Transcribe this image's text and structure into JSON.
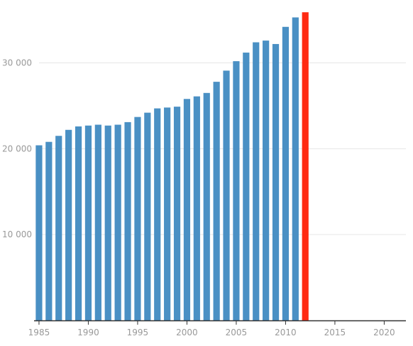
{
  "chart_data": {
    "type": "bar",
    "title": "",
    "xlabel": "",
    "ylabel": "",
    "x": [
      1985,
      1986,
      1987,
      1988,
      1989,
      1990,
      1991,
      1992,
      1993,
      1994,
      1995,
      1996,
      1997,
      1998,
      1999,
      2000,
      2001,
      2002,
      2003,
      2004,
      2005,
      2006,
      2007,
      2008,
      2009,
      2010,
      2011,
      2012
    ],
    "values": [
      20400,
      20800,
      21500,
      22200,
      22600,
      22700,
      22800,
      22700,
      22800,
      23100,
      23700,
      24200,
      24700,
      24800,
      24900,
      25800,
      26100,
      26500,
      27800,
      29100,
      30200,
      31200,
      32400,
      32600,
      32200,
      34200,
      35300,
      35900
    ],
    "highlight_index": 27,
    "colors": {
      "bar": "#4a90c4",
      "highlight": "#ff2a12"
    },
    "xlim": [
      1984.5,
      2022.2
    ],
    "ylim": [
      0,
      36500
    ],
    "y_ticks": [
      10000,
      20000,
      30000
    ],
    "y_tick_labels": [
      "10 000",
      "20 000",
      "30 000"
    ],
    "x_ticks": [
      1985,
      1990,
      1995,
      2000,
      2005,
      2010,
      2015,
      2020
    ],
    "x_tick_labels": [
      "1985",
      "1990",
      "1995",
      "2000",
      "2005",
      "2010",
      "2015",
      "2020"
    ],
    "grid": true,
    "legend": "none"
  }
}
